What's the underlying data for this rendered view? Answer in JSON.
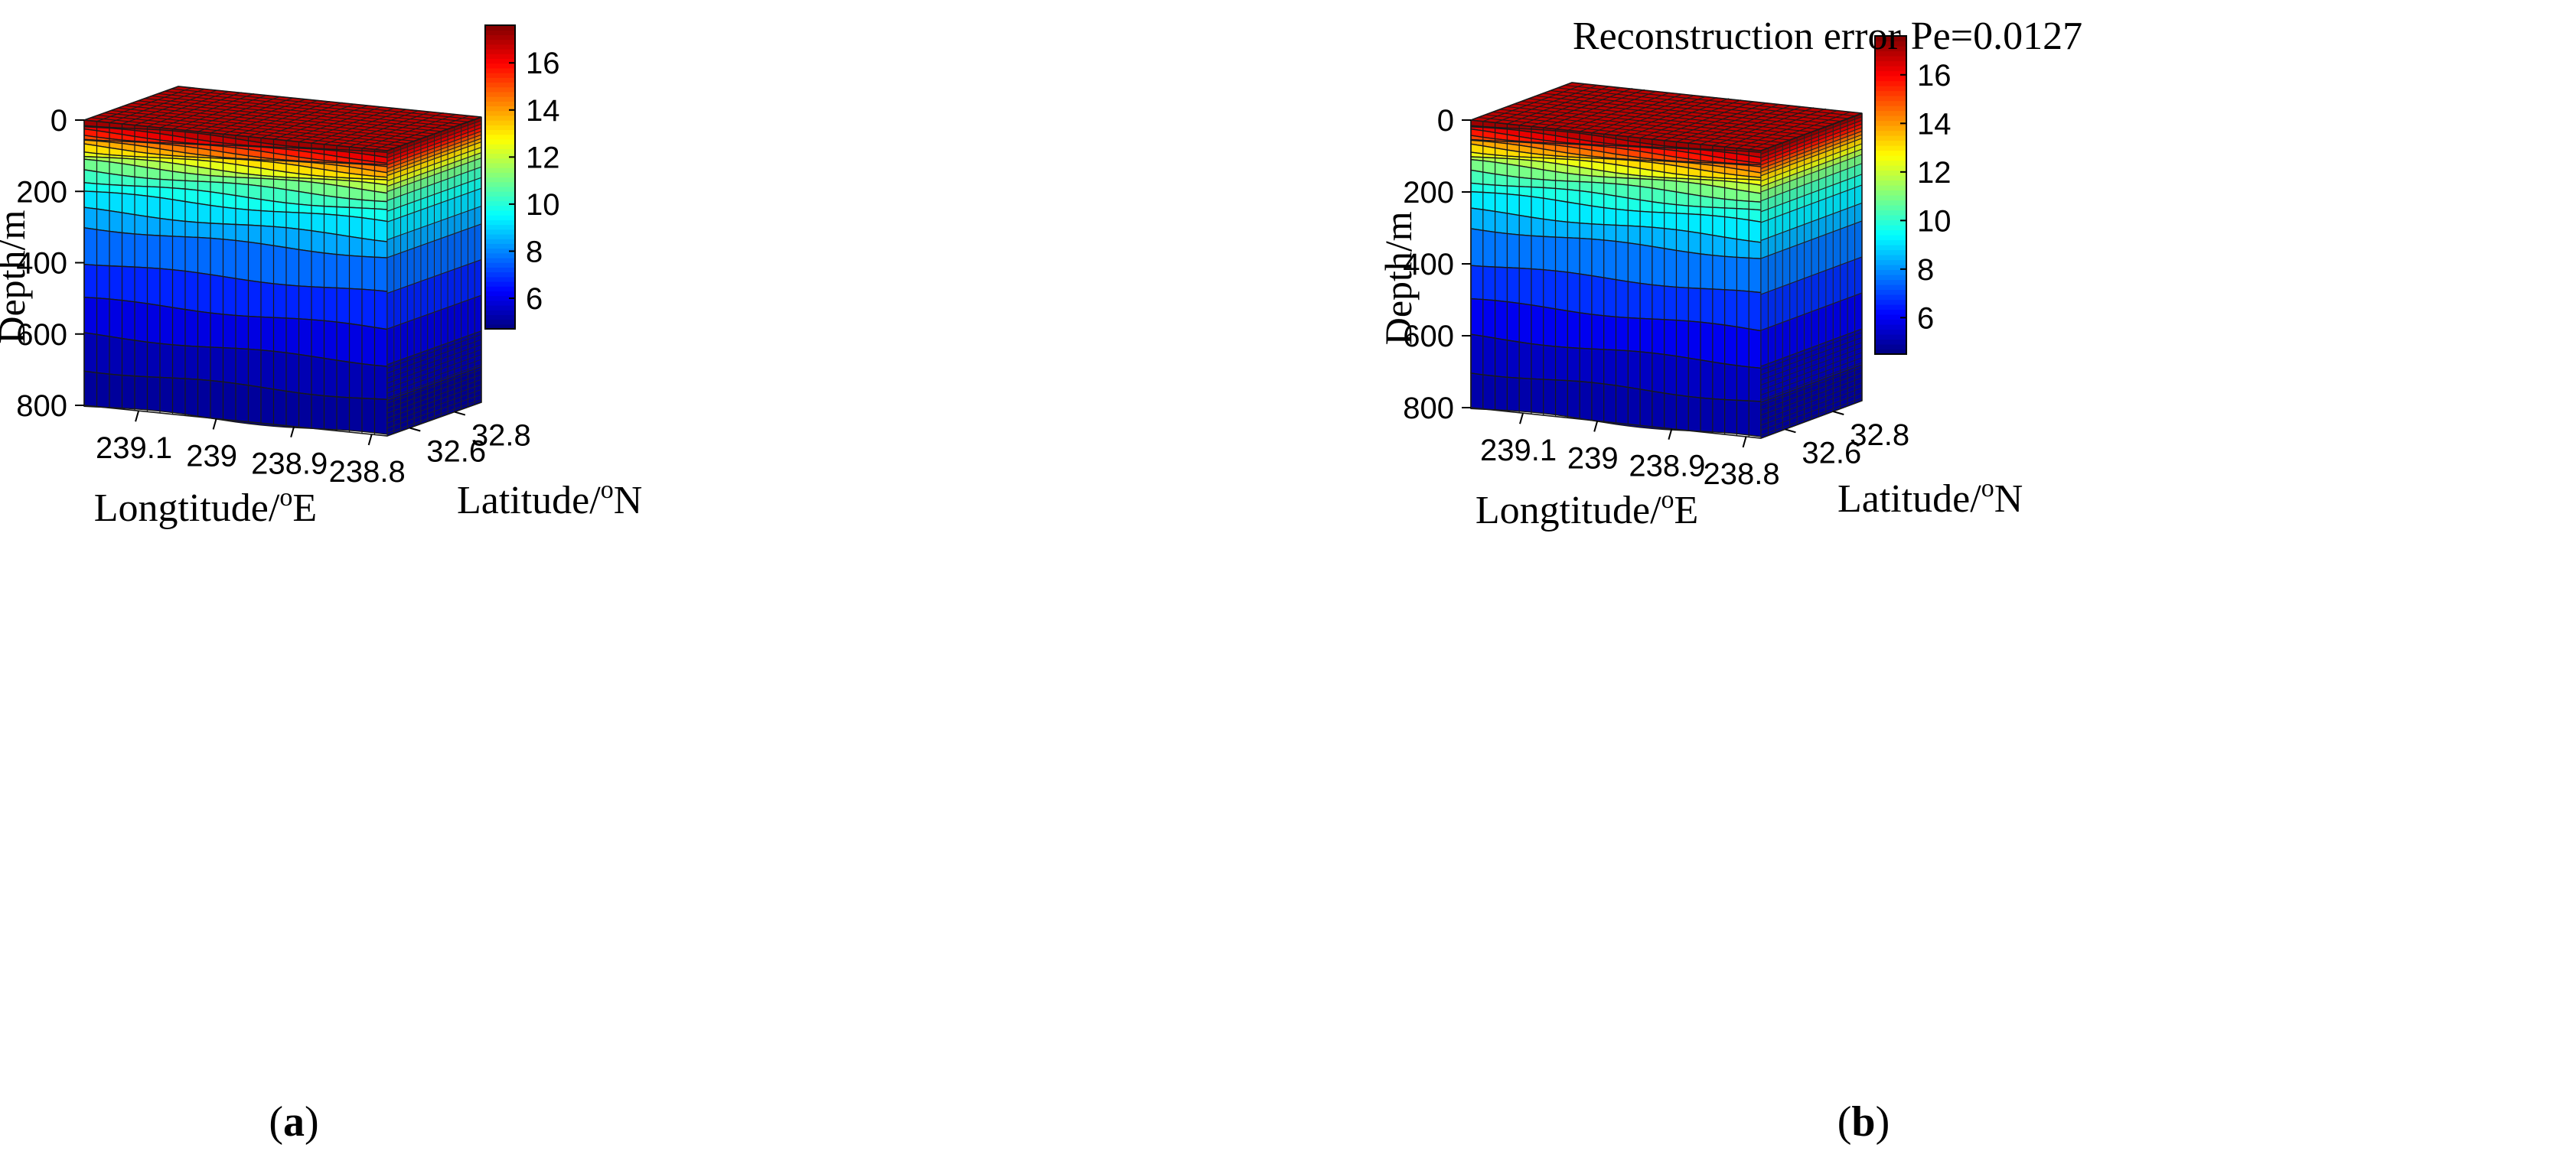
{
  "chart_data": [
    {
      "type": "3d-volume",
      "panel_label": "a",
      "title": "",
      "xlabel": "Longtitude/",
      "xlabel_sup": "o",
      "xlabel_unit": "E",
      "ylabel": "Latitude/",
      "ylabel_sup": "o",
      "ylabel_unit": "N",
      "zlabel": "Depth/m",
      "x_ticks": [
        "239.1",
        "239",
        "238.9",
        "238.8"
      ],
      "x_range": [
        238.78,
        239.17
      ],
      "y_ticks": [
        "32.6",
        "32.8"
      ],
      "y_range": [
        32.5,
        32.92
      ],
      "z_ticks": [
        "0",
        "200",
        "400",
        "600",
        "800"
      ],
      "z_range": [
        0,
        800
      ],
      "colorbar_ticks": [
        "6",
        "8",
        "10",
        "12",
        "14",
        "16"
      ],
      "colorbar_range": [
        4.7,
        17.6
      ],
      "layers": [
        {
          "depth": 0,
          "value": 17.4
        },
        {
          "depth": 10,
          "value": 17.0
        },
        {
          "depth": 20,
          "value": 16.5
        },
        {
          "depth": 30,
          "value": 16.0
        },
        {
          "depth": 40,
          "value": 15.4
        },
        {
          "depth": 50,
          "value": 14.8
        },
        {
          "depth": 60,
          "value": 14.1
        },
        {
          "depth": 70,
          "value": 13.5
        },
        {
          "depth": 85,
          "value": 12.8
        },
        {
          "depth": 100,
          "value": 12.1
        },
        {
          "depth": 115,
          "value": 11.3
        },
        {
          "depth": 140,
          "value": 10.6
        },
        {
          "depth": 170,
          "value": 10.0
        },
        {
          "depth": 200,
          "value": 9.5
        },
        {
          "depth": 250,
          "value": 8.8
        },
        {
          "depth": 300,
          "value": 8.1
        },
        {
          "depth": 400,
          "value": 7.2
        },
        {
          "depth": 500,
          "value": 6.3
        },
        {
          "depth": 600,
          "value": 5.6
        },
        {
          "depth": 700,
          "value": 5.1
        },
        {
          "depth": 800,
          "value": 5.0
        }
      ]
    },
    {
      "type": "3d-volume",
      "panel_label": "b",
      "title": "Reconstruction error Pe=0.0127",
      "xlabel": "Longtitude/",
      "xlabel_sup": "o",
      "xlabel_unit": "E",
      "ylabel": "Latitude/",
      "ylabel_sup": "o",
      "ylabel_unit": "N",
      "zlabel": "Depth/m",
      "x_ticks": [
        "239.1",
        "239",
        "238.9",
        "238.8"
      ],
      "x_range": [
        238.78,
        239.17
      ],
      "y_ticks": [
        "32.6",
        "32.8"
      ],
      "y_range": [
        32.5,
        32.92
      ],
      "z_ticks": [
        "0",
        "200",
        "400",
        "600",
        "800"
      ],
      "z_range": [
        0,
        800
      ],
      "colorbar_ticks": [
        "6",
        "8",
        "10",
        "12",
        "14",
        "16"
      ],
      "colorbar_range": [
        4.5,
        17.6
      ],
      "layers": [
        {
          "depth": 0,
          "value": 17.4
        },
        {
          "depth": 10,
          "value": 17.0
        },
        {
          "depth": 20,
          "value": 16.5
        },
        {
          "depth": 30,
          "value": 16.0
        },
        {
          "depth": 40,
          "value": 15.4
        },
        {
          "depth": 50,
          "value": 14.8
        },
        {
          "depth": 60,
          "value": 14.1
        },
        {
          "depth": 70,
          "value": 13.5
        },
        {
          "depth": 85,
          "value": 12.8
        },
        {
          "depth": 100,
          "value": 12.1
        },
        {
          "depth": 115,
          "value": 11.3
        },
        {
          "depth": 140,
          "value": 10.6
        },
        {
          "depth": 170,
          "value": 10.0
        },
        {
          "depth": 200,
          "value": 9.5
        },
        {
          "depth": 250,
          "value": 8.8
        },
        {
          "depth": 300,
          "value": 8.1
        },
        {
          "depth": 400,
          "value": 7.2
        },
        {
          "depth": 500,
          "value": 6.3
        },
        {
          "depth": 600,
          "value": 5.6
        },
        {
          "depth": 700,
          "value": 5.1
        },
        {
          "depth": 800,
          "value": 5.0
        }
      ]
    }
  ]
}
